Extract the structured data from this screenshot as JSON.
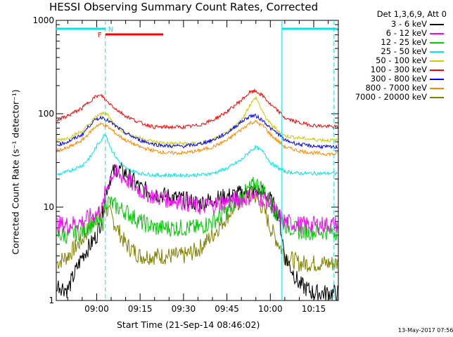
{
  "chart_data": {
    "type": "line",
    "title": "HESSI Observing Summary Count Rates, Corrected",
    "xlabel": "Start Time (21-Sep-14 08:46:02)",
    "ylabel": "Corrected Count Rate (s⁻¹ detector⁻¹)",
    "yscale": "log",
    "ylim": [
      1,
      1000
    ],
    "xlim": [
      "08:46:02",
      "10:23:30"
    ],
    "x_ticks": [
      "09:00",
      "09:15",
      "09:30",
      "09:45",
      "10:00",
      "10:15"
    ],
    "y_ticks": [
      "1",
      "10",
      "100",
      "1000"
    ],
    "legend_position": "outside-right",
    "legend_header": "Det 1,3,6,9, Att 0",
    "grid": false,
    "x": [
      "08:46",
      "08:50",
      "08:55",
      "08:58",
      "09:00",
      "09:02",
      "09:03",
      "09:05",
      "09:07",
      "09:10",
      "09:15",
      "09:20",
      "09:25",
      "09:30",
      "09:35",
      "09:40",
      "09:45",
      "09:50",
      "09:53",
      "09:55",
      "09:58",
      "10:00",
      "10:03",
      "10:05",
      "10:10",
      "10:15",
      "10:20",
      "10:23"
    ],
    "series": [
      {
        "name": "3 - 6 keV",
        "color": "#000000",
        "values": [
          1.5,
          1.3,
          3,
          4,
          5,
          8,
          14,
          22,
          26,
          23,
          16,
          14,
          13,
          12,
          11,
          12,
          13,
          14,
          15,
          15,
          14,
          12,
          8,
          3,
          1.5,
          1.2,
          1.2,
          1.2
        ]
      },
      {
        "name": "6 - 12 keV",
        "color": "#ff00ff",
        "values": [
          6.5,
          6.5,
          7,
          8,
          8.5,
          9.5,
          15,
          22,
          23,
          20,
          15,
          13,
          12,
          11.5,
          10,
          10.5,
          11.5,
          12,
          13,
          13,
          12,
          11,
          8,
          7,
          6.5,
          6.5,
          6.5,
          6.5
        ]
      },
      {
        "name": "12 - 25 keV",
        "color": "#00cc00",
        "values": [
          5,
          5,
          5.5,
          6.5,
          7,
          6.5,
          12,
          11,
          10,
          9,
          7,
          6,
          6,
          6,
          6,
          7,
          9,
          13,
          16,
          18,
          15,
          11,
          8,
          6.5,
          5.5,
          5.5,
          5.5,
          5.5
        ]
      },
      {
        "name": "25 - 50 keV",
        "color": "#00e5e5",
        "values": [
          22,
          24,
          28,
          35,
          45,
          55,
          62,
          42,
          33,
          26,
          23,
          22,
          22,
          22,
          22,
          23,
          26,
          32,
          40,
          44,
          38,
          30,
          26,
          24,
          23,
          23,
          23,
          23
        ]
      },
      {
        "name": "50 - 100 keV",
        "color": "#cccc00",
        "values": [
          52,
          55,
          65,
          80,
          95,
          100,
          105,
          85,
          72,
          62,
          55,
          50,
          48,
          48,
          48,
          52,
          62,
          85,
          125,
          150,
          95,
          78,
          65,
          58,
          55,
          53,
          52,
          52
        ]
      },
      {
        "name": "100 - 300 keV",
        "color": "#ff0000",
        "values": [
          85,
          95,
          115,
          140,
          155,
          155,
          140,
          125,
          110,
          95,
          80,
          72,
          72,
          72,
          75,
          85,
          105,
          140,
          170,
          175,
          150,
          125,
          105,
          90,
          80,
          75,
          73,
          72
        ]
      },
      {
        "name": "300 - 800 keV",
        "color": "#0000ff",
        "values": [
          46,
          50,
          60,
          78,
          88,
          92,
          88,
          80,
          72,
          62,
          52,
          47,
          45,
          45,
          47,
          52,
          62,
          82,
          95,
          95,
          82,
          70,
          60,
          52,
          47,
          45,
          44,
          44
        ]
      },
      {
        "name": "800 - 7000 keV",
        "color": "#ff8800",
        "values": [
          40,
          43,
          52,
          65,
          75,
          78,
          75,
          68,
          60,
          52,
          44,
          40,
          38,
          38,
          40,
          44,
          52,
          68,
          80,
          82,
          72,
          60,
          50,
          44,
          40,
          38,
          37,
          37
        ]
      },
      {
        "name": "7000 - 20000 keV",
        "color": "#808000",
        "values": [
          2.5,
          3,
          4.5,
          6.5,
          8,
          9,
          10,
          8,
          6,
          4,
          3,
          3,
          3,
          3,
          3.5,
          5,
          8,
          12,
          14,
          13,
          9,
          6,
          4,
          3,
          2.5,
          2.5,
          2.5,
          2.5
        ]
      }
    ],
    "annotations": {
      "n_label": "N",
      "f_label": "F",
      "n_color": "#00e5e5",
      "f_color": "#ff0000",
      "night_segments": [
        [
          "08:46",
          "09:03"
        ],
        [
          "10:04",
          "10:23"
        ]
      ],
      "flare_segment": [
        "09:03",
        "09:23"
      ],
      "saa_dashed_lines": [
        "09:03",
        "10:22"
      ],
      "solid_marker_line": "10:04"
    }
  },
  "timestamp": "13-May-2017 07:56"
}
